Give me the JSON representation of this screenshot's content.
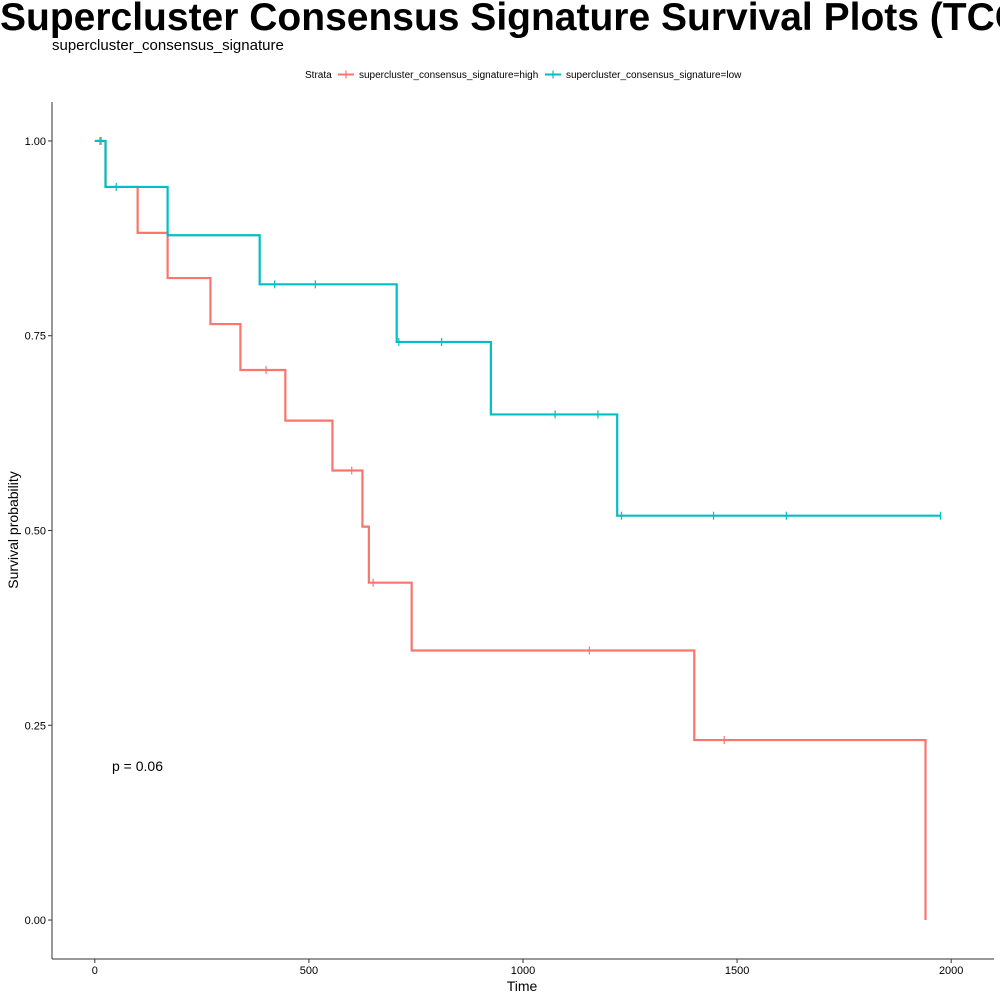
{
  "title": "Supercluster Consensus Signature Survival Plots (TCGA-CHOL)",
  "subtitle": "supercluster_consensus_signature",
  "legend": {
    "title": "Strata",
    "items": [
      {
        "label": "supercluster_consensus_signature=high",
        "color": "#F8766D"
      },
      {
        "label": "supercluster_consensus_signature=low",
        "color": "#00BFC4"
      }
    ]
  },
  "pvalue_label": "p = 0.06",
  "chart_data": {
    "type": "line",
    "title": "Supercluster Consensus Signature Survival Plots (TCGA-CHOL)",
    "subtitle": "supercluster_consensus_signature",
    "xlabel": "Time",
    "ylabel": "Survival probability",
    "xlim": [
      -100,
      2100
    ],
    "ylim": [
      -0.05,
      1.05
    ],
    "xticks": [
      0,
      500,
      1000,
      1500,
      2000
    ],
    "yticks": [
      0,
      0.25,
      0.5,
      0.75,
      1.0
    ],
    "ytick_labels": [
      "0.00",
      "0.25",
      "0.50",
      "0.75",
      "1.00"
    ],
    "grid": false,
    "legend_position": "top",
    "step": true,
    "series": [
      {
        "name": "supercluster_consensus_signature=high",
        "color": "#F8766D",
        "x": [
          0,
          25,
          100,
          170,
          270,
          340,
          445,
          555,
          625,
          640,
          740,
          1400,
          1940,
          1940
        ],
        "y": [
          1.0,
          0.941,
          0.882,
          0.824,
          0.765,
          0.706,
          0.641,
          0.577,
          0.505,
          0.433,
          0.346,
          0.231,
          0.231,
          0.0
        ],
        "censor_x": [
          15,
          400,
          600,
          650,
          1155,
          1470
        ],
        "censor_y": [
          1.0,
          0.706,
          0.577,
          0.433,
          0.346,
          0.231
        ]
      },
      {
        "name": "supercluster_consensus_signature=low",
        "color": "#00BFC4",
        "x": [
          0,
          25,
          170,
          385,
          705,
          925,
          1220,
          1975
        ],
        "y": [
          1.0,
          0.941,
          0.879,
          0.816,
          0.742,
          0.649,
          0.519,
          0.519
        ],
        "censor_x": [
          12,
          50,
          420,
          515,
          710,
          810,
          1075,
          1175,
          1230,
          1445,
          1615,
          1975
        ],
        "censor_y": [
          1.0,
          0.941,
          0.816,
          0.816,
          0.742,
          0.742,
          0.649,
          0.649,
          0.519,
          0.519,
          0.519,
          0.519
        ]
      }
    ]
  }
}
